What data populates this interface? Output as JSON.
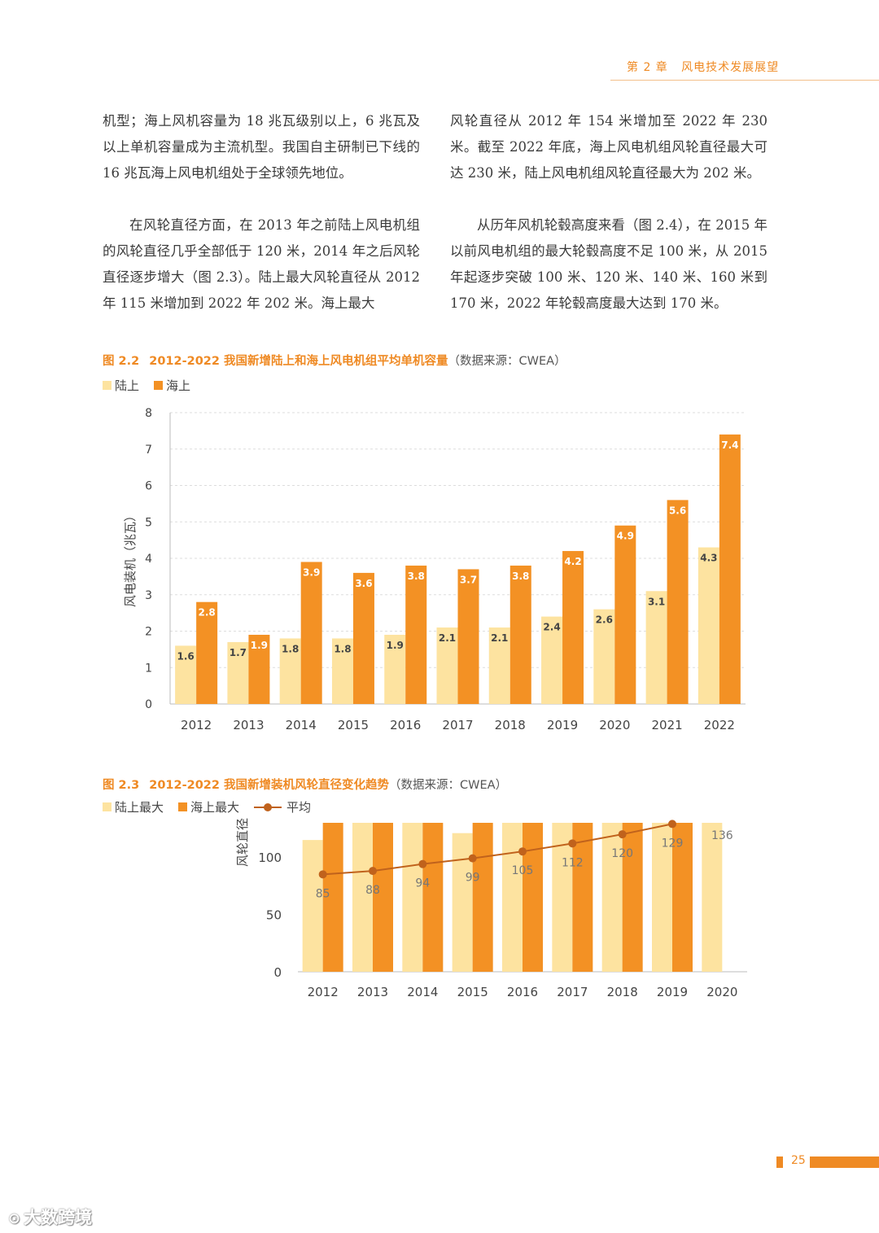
{
  "header": {
    "chapter": "第 2 章",
    "title": "风电技术发展展望"
  },
  "left_column": {
    "p1": "机型；海上风机容量为 18 兆瓦级别以上，6 兆瓦及以上单机容量成为主流机型。我国自主研制已下线的 16 兆瓦海上风电机组处于全球领先地位。",
    "p2": "在风轮直径方面，在 2013 年之前陆上风电机组的风轮直径几乎全部低于 120 米，2014 年之后风轮直径逐步增大（图 2.3）。陆上最大风轮直径从 2012 年 115 米增加到 2022 年 202 米。海上最大"
  },
  "right_column": {
    "p1": "风轮直径从 2012 年 154 米增加至 2022 年 230 米。截至 2022 年底，海上风电机组风轮直径最大可达 230 米，陆上风电机组风轮直径最大为 202 米。",
    "p2": "从历年风机轮毂高度来看（图 2.4），在 2015 年以前风电机组的最大轮毂高度不足 100 米，从 2015 年起逐步突破 100 米、120 米、140 米、160 米到 170 米，2022 年轮毂高度最大达到 170 米。"
  },
  "fig22": {
    "number": "图 2.2",
    "title": "2012-2022 我国新增陆上和海上风电机组平均单机容量",
    "source": "（数据来源：CWEA）"
  },
  "fig23": {
    "number": "图 2.3",
    "title": "2012-2022 我国新增装机风轮直径变化趋势",
    "source": "（数据来源：CWEA）"
  },
  "page_number": "25",
  "watermark": "大数跨境",
  "chart_data": [
    {
      "type": "bar",
      "categories": [
        "2012",
        "2013",
        "2014",
        "2015",
        "2016",
        "2017",
        "2018",
        "2019",
        "2020",
        "2021",
        "2022"
      ],
      "series": [
        {
          "name": "陆上",
          "values": [
            1.6,
            1.7,
            1.8,
            1.8,
            1.9,
            2.1,
            2.1,
            2.4,
            2.6,
            3.1,
            4.3
          ],
          "color": "#fde3a0"
        },
        {
          "name": "海上",
          "values": [
            2.8,
            1.9,
            3.9,
            3.6,
            3.8,
            3.7,
            3.8,
            4.2,
            4.9,
            5.6,
            7.4
          ],
          "color": "#f39124"
        }
      ],
      "title": "",
      "xlabel": "",
      "ylabel": "风电装机（兆瓦）",
      "ylim": [
        0,
        8
      ],
      "yticks": [
        0,
        1,
        2,
        3,
        4,
        5,
        6,
        7,
        8
      ],
      "grid": true,
      "legend": "top-left"
    },
    {
      "type": "bar",
      "categories": [
        "2012",
        "2013",
        "2014",
        "2015",
        "2016",
        "2017",
        "2018",
        "2019",
        "2020"
      ],
      "series": [
        {
          "name": "陆上最大",
          "values": [
            115,
            130,
            130,
            121,
            130,
            130,
            130,
            130,
            130
          ],
          "color": "#fde3a0"
        },
        {
          "name": "海上最大",
          "values": [
            130,
            130,
            130,
            130,
            130,
            130,
            130,
            130,
            null
          ],
          "color": "#f39124"
        },
        {
          "name": "平均",
          "type": "line",
          "values": [
            85,
            88,
            94,
            99,
            105,
            112,
            120,
            129,
            136
          ],
          "color": "#c0621c"
        }
      ],
      "title": "",
      "xlabel": "",
      "ylabel": "风轮直径",
      "ylim": [
        0,
        130
      ],
      "yticks": [
        0,
        50,
        100
      ],
      "grid": false,
      "legend": "top-left",
      "clipped_at_top": true
    }
  ]
}
